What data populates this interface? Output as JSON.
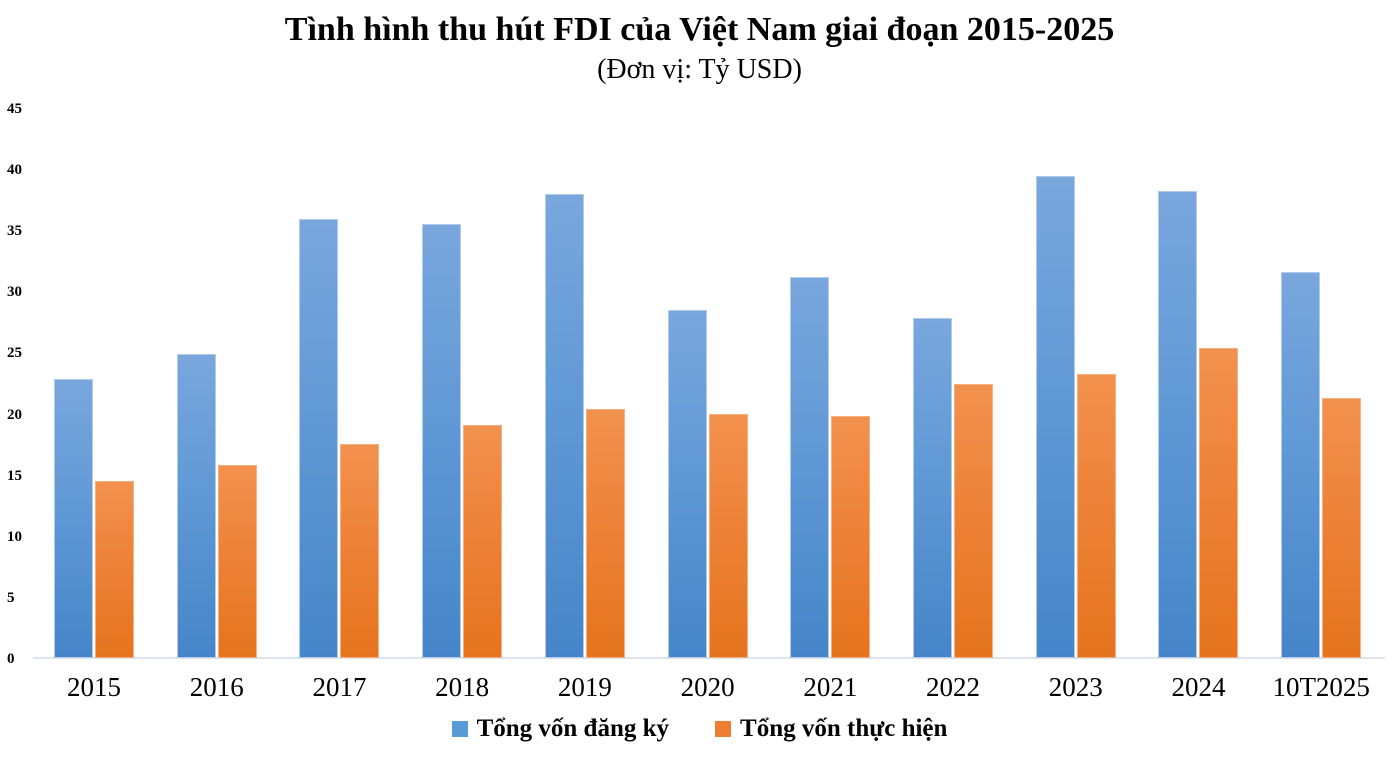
{
  "title": "Tình hình thu hút FDI của Việt Nam giai đoạn 2015-2025",
  "subtitle": "(Đơn vị: Tỷ USD)",
  "chart_data": {
    "type": "bar",
    "title": "Tình hình thu hút FDI của Việt Nam giai đoạn 2015-2025",
    "subtitle": "(Đơn vị: Tỷ USD)",
    "unit": "Tỷ USD",
    "categories": [
      "2015",
      "2016",
      "2017",
      "2018",
      "2019",
      "2020",
      "2021",
      "2022",
      "2023",
      "2024",
      "10T2025"
    ],
    "series": [
      {
        "name": "Tổng vốn đăng ký",
        "color": "#5B9BD5",
        "gradient_top": "#79A7DD",
        "gradient_bottom": "#4685C9",
        "values": [
          22.8,
          24.9,
          35.9,
          35.5,
          38.0,
          28.5,
          31.2,
          27.8,
          39.4,
          38.2,
          31.6
        ]
      },
      {
        "name": "Tổng vốn thực hiện",
        "color": "#ED7D31",
        "gradient_top": "#F2914E",
        "gradient_bottom": "#E5741D",
        "values": [
          14.5,
          15.8,
          17.5,
          19.1,
          20.4,
          20.0,
          19.8,
          22.4,
          23.2,
          25.4,
          21.3
        ]
      }
    ],
    "xlabel": "",
    "ylabel": "",
    "ylim": [
      0,
      45
    ],
    "yticks": [
      0,
      5,
      10,
      15,
      20,
      25,
      30,
      35,
      40,
      45
    ],
    "grid": false,
    "legend_position": "bottom",
    "background": "#FFFFFF",
    "baseline_color": "#DCE4EE"
  }
}
